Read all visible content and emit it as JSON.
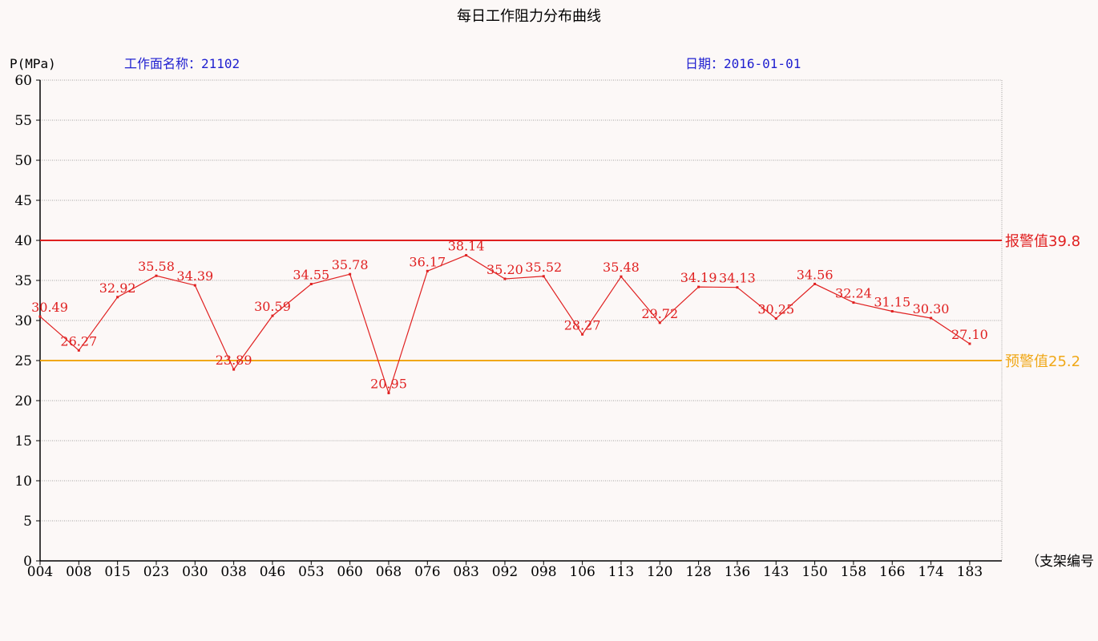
{
  "header": {
    "title": "每日工作阻力分布曲线",
    "unit_label": "P(MPa)",
    "workface_label": "工作面名称：21102",
    "date_label": "日期：2016-01-01",
    "x_axis_label": "（支架编号"
  },
  "chart_data": {
    "type": "line",
    "title": "每日工作阻力分布曲线",
    "ylabel": "P(MPa)",
    "xlabel": "（支架编号",
    "ylim": [
      0,
      60
    ],
    "y_ticks": [
      0,
      5,
      10,
      15,
      20,
      25,
      30,
      35,
      40,
      45,
      50,
      55,
      60
    ],
    "grid": true,
    "categories": [
      "004",
      "008",
      "015",
      "023",
      "030",
      "038",
      "046",
      "053",
      "060",
      "068",
      "076",
      "083",
      "092",
      "098",
      "106",
      "113",
      "120",
      "128",
      "136",
      "143",
      "150",
      "158",
      "166",
      "174",
      "183"
    ],
    "values": [
      30.49,
      26.27,
      32.92,
      35.58,
      34.39,
      23.89,
      30.59,
      34.55,
      35.78,
      20.95,
      36.17,
      38.14,
      35.2,
      35.52,
      28.27,
      35.48,
      29.72,
      34.19,
      34.13,
      30.25,
      34.56,
      32.24,
      31.15,
      30.3,
      27.1
    ],
    "value_labels": [
      "30.49",
      "26.27",
      "32.92",
      "35.58",
      "34.39",
      "23.89",
      "30.59",
      "34.55",
      "35.78",
      "20.95",
      "36.17",
      "38.14",
      "35.20",
      "35.52",
      "28.27",
      "35.48",
      "29.72",
      "34.19",
      "34.13",
      "30.25",
      "34.56",
      "32.24",
      "31.15",
      "30.30",
      "27.10"
    ],
    "thresholds": [
      {
        "label": "报警值39.8",
        "y": 40,
        "color": "#e02020"
      },
      {
        "label": "预警值25.2",
        "y": 25,
        "color": "#f0a818"
      }
    ],
    "line_color": "#e02020"
  },
  "colors": {
    "background": "#fcf8f7",
    "header_text": "#2020d0",
    "series": "#e02020",
    "alarm": "#e02020",
    "warning": "#f0a818"
  }
}
